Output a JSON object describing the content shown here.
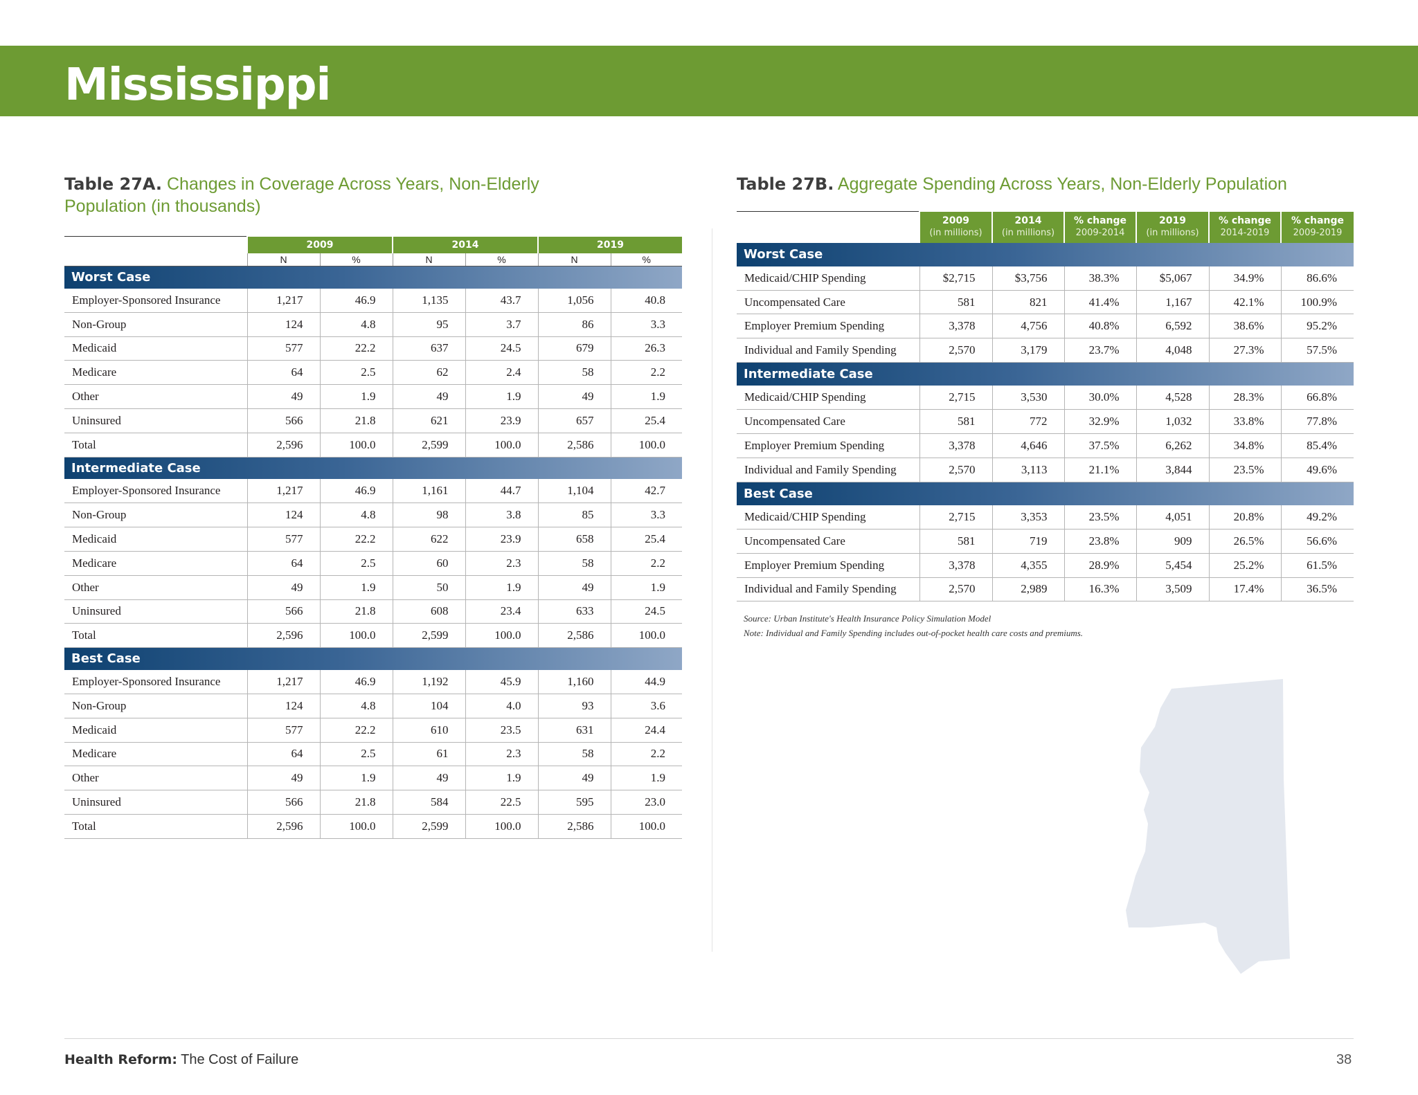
{
  "page": {
    "title": "Mississippi",
    "footer_bold": "Health Reform:",
    "footer_text": "The Cost of Failure",
    "page_number": "38"
  },
  "table_a": {
    "label": "Table 27A.",
    "title": "Changes in Coverage Across Years, Non-Elderly Population (in thousands)",
    "years": [
      "2009",
      "2014",
      "2019"
    ],
    "subheaders": [
      "N",
      "%",
      "N",
      "%",
      "N",
      "%"
    ],
    "sections": [
      {
        "name": "Worst Case",
        "rows": [
          {
            "label": "Employer-Sponsored Insurance",
            "values": [
              "1,217",
              "46.9",
              "1,135",
              "43.7",
              "1,056",
              "40.8"
            ]
          },
          {
            "label": "Non-Group",
            "values": [
              "124",
              "4.8",
              "95",
              "3.7",
              "86",
              "3.3"
            ]
          },
          {
            "label": "Medicaid",
            "values": [
              "577",
              "22.2",
              "637",
              "24.5",
              "679",
              "26.3"
            ]
          },
          {
            "label": "Medicare",
            "values": [
              "64",
              "2.5",
              "62",
              "2.4",
              "58",
              "2.2"
            ]
          },
          {
            "label": "Other",
            "values": [
              "49",
              "1.9",
              "49",
              "1.9",
              "49",
              "1.9"
            ]
          },
          {
            "label": "Uninsured",
            "values": [
              "566",
              "21.8",
              "621",
              "23.9",
              "657",
              "25.4"
            ]
          },
          {
            "label": "Total",
            "values": [
              "2,596",
              "100.0",
              "2,599",
              "100.0",
              "2,586",
              "100.0"
            ]
          }
        ]
      },
      {
        "name": "Intermediate Case",
        "rows": [
          {
            "label": "Employer-Sponsored Insurance",
            "values": [
              "1,217",
              "46.9",
              "1,161",
              "44.7",
              "1,104",
              "42.7"
            ]
          },
          {
            "label": "Non-Group",
            "values": [
              "124",
              "4.8",
              "98",
              "3.8",
              "85",
              "3.3"
            ]
          },
          {
            "label": "Medicaid",
            "values": [
              "577",
              "22.2",
              "622",
              "23.9",
              "658",
              "25.4"
            ]
          },
          {
            "label": "Medicare",
            "values": [
              "64",
              "2.5",
              "60",
              "2.3",
              "58",
              "2.2"
            ]
          },
          {
            "label": "Other",
            "values": [
              "49",
              "1.9",
              "50",
              "1.9",
              "49",
              "1.9"
            ]
          },
          {
            "label": "Uninsured",
            "values": [
              "566",
              "21.8",
              "608",
              "23.4",
              "633",
              "24.5"
            ]
          },
          {
            "label": "Total",
            "values": [
              "2,596",
              "100.0",
              "2,599",
              "100.0",
              "2,586",
              "100.0"
            ]
          }
        ]
      },
      {
        "name": "Best Case",
        "rows": [
          {
            "label": "Employer-Sponsored Insurance",
            "values": [
              "1,217",
              "46.9",
              "1,192",
              "45.9",
              "1,160",
              "44.9"
            ]
          },
          {
            "label": "Non-Group",
            "values": [
              "124",
              "4.8",
              "104",
              "4.0",
              "93",
              "3.6"
            ]
          },
          {
            "label": "Medicaid",
            "values": [
              "577",
              "22.2",
              "610",
              "23.5",
              "631",
              "24.4"
            ]
          },
          {
            "label": "Medicare",
            "values": [
              "64",
              "2.5",
              "61",
              "2.3",
              "58",
              "2.2"
            ]
          },
          {
            "label": "Other",
            "values": [
              "49",
              "1.9",
              "49",
              "1.9",
              "49",
              "1.9"
            ]
          },
          {
            "label": "Uninsured",
            "values": [
              "566",
              "21.8",
              "584",
              "22.5",
              "595",
              "23.0"
            ]
          },
          {
            "label": "Total",
            "values": [
              "2,596",
              "100.0",
              "2,599",
              "100.0",
              "2,586",
              "100.0"
            ]
          }
        ]
      }
    ]
  },
  "table_b": {
    "label": "Table 27B.",
    "title": "Aggregate Spending Across Years, Non-Elderly Population",
    "headers": [
      {
        "top": "2009",
        "bottom": "(in millions)"
      },
      {
        "top": "2014",
        "bottom": "(in millions)"
      },
      {
        "top": "% change",
        "bottom": "2009-2014"
      },
      {
        "top": "2019",
        "bottom": "(in millions)"
      },
      {
        "top": "% change",
        "bottom": "2014-2019"
      },
      {
        "top": "% change",
        "bottom": "2009-2019"
      }
    ],
    "sections": [
      {
        "name": "Worst Case",
        "rows": [
          {
            "label": "Medicaid/CHIP Spending",
            "values": [
              "$2,715",
              "$3,756",
              "38.3%",
              "$5,067",
              "34.9%",
              "86.6%"
            ]
          },
          {
            "label": "Uncompensated Care",
            "values": [
              "581",
              "821",
              "41.4%",
              "1,167",
              "42.1%",
              "100.9%"
            ]
          },
          {
            "label": "Employer Premium Spending",
            "values": [
              "3,378",
              "4,756",
              "40.8%",
              "6,592",
              "38.6%",
              "95.2%"
            ]
          },
          {
            "label": "Individual and Family Spending",
            "values": [
              "2,570",
              "3,179",
              "23.7%",
              "4,048",
              "27.3%",
              "57.5%"
            ]
          }
        ]
      },
      {
        "name": "Intermediate Case",
        "rows": [
          {
            "label": "Medicaid/CHIP Spending",
            "values": [
              "2,715",
              "3,530",
              "30.0%",
              "4,528",
              "28.3%",
              "66.8%"
            ]
          },
          {
            "label": "Uncompensated Care",
            "values": [
              "581",
              "772",
              "32.9%",
              "1,032",
              "33.8%",
              "77.8%"
            ]
          },
          {
            "label": "Employer Premium Spending",
            "values": [
              "3,378",
              "4,646",
              "37.5%",
              "6,262",
              "34.8%",
              "85.4%"
            ]
          },
          {
            "label": "Individual and Family Spending",
            "values": [
              "2,570",
              "3,113",
              "21.1%",
              "3,844",
              "23.5%",
              "49.6%"
            ]
          }
        ]
      },
      {
        "name": "Best Case",
        "rows": [
          {
            "label": "Medicaid/CHIP Spending",
            "values": [
              "2,715",
              "3,353",
              "23.5%",
              "4,051",
              "20.8%",
              "49.2%"
            ]
          },
          {
            "label": "Uncompensated Care",
            "values": [
              "581",
              "719",
              "23.8%",
              "909",
              "26.5%",
              "56.6%"
            ]
          },
          {
            "label": "Employer Premium Spending",
            "values": [
              "3,378",
              "4,355",
              "28.9%",
              "5,454",
              "25.2%",
              "61.5%"
            ]
          },
          {
            "label": "Individual and Family Spending",
            "values": [
              "2,570",
              "2,989",
              "16.3%",
              "3,509",
              "17.4%",
              "36.5%"
            ]
          }
        ]
      }
    ],
    "source": "Source: Urban Institute's Health Insurance Policy Simulation Model",
    "note": "Note: Individual and Family Spending includes out-of-pocket health care costs and premiums."
  },
  "colors": {
    "banner_green": "#6d9b33",
    "section_blue": "#0e4170",
    "map_gray": "#e4e8ef"
  }
}
